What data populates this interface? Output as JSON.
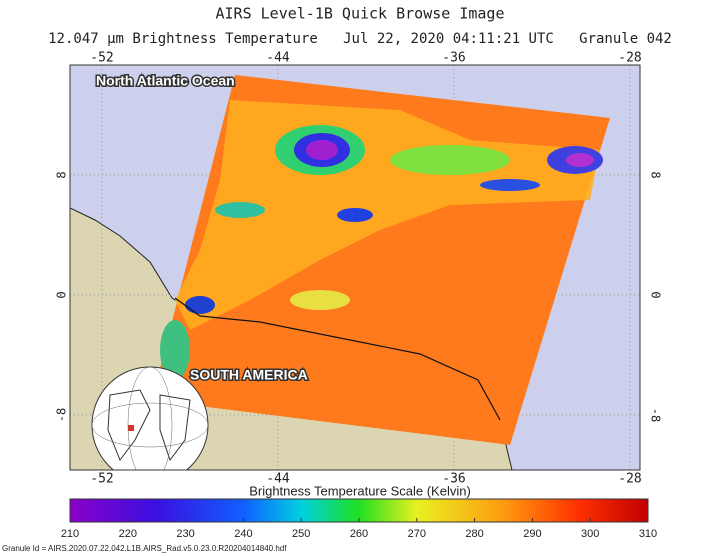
{
  "header": {
    "title": "AIRS Level-1B Quick Browse Image",
    "subtitle": "12.047 μm Brightness Temperature   Jul 22, 2020 04:11:21 UTC   Granule 042"
  },
  "map": {
    "lon_ticks": [
      -52,
      -44,
      -36,
      -28
    ],
    "lat_ticks": [
      8,
      0,
      -8
    ],
    "labels": [
      "North Atlantic Ocean",
      "SOUTH AMERICA"
    ]
  },
  "colorbar": {
    "title": "Brightness Temperature Scale (Kelvin)",
    "lim": [
      210,
      310
    ],
    "ticks": [
      210,
      220,
      230,
      240,
      250,
      260,
      270,
      280,
      290,
      300,
      310
    ]
  },
  "footer": {
    "granule_id": "Granule Id = AIRS.2020.07.22.042.L1B.AIRS_Rad.v5.0.23.0.R20204014840.hdf"
  }
}
